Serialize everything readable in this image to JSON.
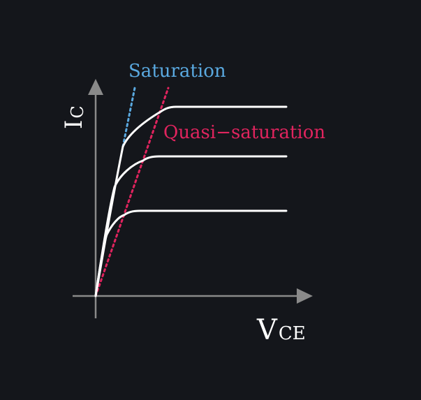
{
  "labels": {
    "y_axis_main": "I",
    "y_axis_sub": "C",
    "x_axis_main": "V",
    "x_axis_sub": "CE",
    "saturation": "Saturation",
    "quasi_saturation": "Quasi−saturation"
  },
  "colors": {
    "background": "#14161b",
    "axis": "#8a8a8a",
    "curve": "#ffffff",
    "saturation": "#5aa9e0",
    "quasi_saturation": "#e0245e"
  }
}
